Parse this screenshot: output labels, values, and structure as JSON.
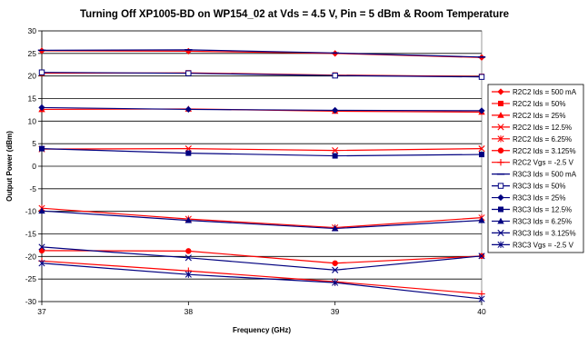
{
  "chart_data": {
    "type": "line",
    "title": "Turning Off XP1005-BD on WP154_02 at Vds = 4.5 V, Pin = 5 dBm & Room Temperature",
    "xlabel": "Frequency (GHz)",
    "ylabel": "Output Power (dBm)",
    "x": [
      37,
      38,
      39,
      40
    ],
    "xlim": [
      37,
      40
    ],
    "ylim": [
      -30,
      30
    ],
    "xticks": [
      "37",
      "38",
      "39",
      "40"
    ],
    "yticks": [
      "30",
      "25",
      "20",
      "15",
      "10",
      "5",
      "0",
      "-5",
      "-10",
      "-15",
      "-20",
      "-25",
      "-30"
    ],
    "grid": "horizontal",
    "legend_position": "right",
    "series": [
      {
        "name": "R2C2 Ids = 500 mA",
        "color": "#ff0000",
        "marker": "diamond-filled",
        "values": [
          25.6,
          25.5,
          25.0,
          24.1
        ]
      },
      {
        "name": "R2C2 Ids = 50%",
        "color": "#ff0000",
        "marker": "square-filled",
        "values": [
          20.6,
          20.7,
          20.2,
          19.9
        ]
      },
      {
        "name": "R2C2 Ids = 25%",
        "color": "#ff0000",
        "marker": "triangle-filled",
        "values": [
          12.6,
          12.7,
          12.2,
          12.0
        ]
      },
      {
        "name": "R2C2 Ids = 12.5%",
        "color": "#ff0000",
        "marker": "x",
        "values": [
          3.8,
          3.9,
          3.5,
          3.9
        ]
      },
      {
        "name": "R2C2 Ids = 6.25%",
        "color": "#ff0000",
        "marker": "star",
        "values": [
          -9.3,
          -11.7,
          -13.6,
          -11.4
        ]
      },
      {
        "name": "R2C2 Ids = 3.125%",
        "color": "#ff0000",
        "marker": "circle-filled",
        "values": [
          -18.7,
          -18.8,
          -21.5,
          -19.9
        ]
      },
      {
        "name": "R2C2 Vgs = -2.5 V",
        "color": "#ff0000",
        "marker": "plus",
        "values": [
          -21.0,
          -23.2,
          -25.6,
          -28.3
        ]
      },
      {
        "name": "R3C3 Ids = 500 mA",
        "color": "#000080",
        "marker": "dash",
        "values": [
          25.7,
          25.8,
          25.1,
          24.2
        ]
      },
      {
        "name": "R3C3 Ids = 50%",
        "color": "#000080",
        "marker": "square-open",
        "values": [
          20.8,
          20.6,
          20.1,
          19.8
        ]
      },
      {
        "name": "R3C3 Ids = 25%",
        "color": "#000080",
        "marker": "diamond-filled",
        "values": [
          13.0,
          12.6,
          12.4,
          12.3
        ]
      },
      {
        "name": "R3C3 Ids = 12.5%",
        "color": "#000080",
        "marker": "square-filled",
        "values": [
          3.9,
          2.9,
          2.3,
          2.6
        ]
      },
      {
        "name": "R3C3 Ids = 6.25%",
        "color": "#000080",
        "marker": "triangle-filled",
        "values": [
          -9.9,
          -12.0,
          -13.8,
          -12.0
        ]
      },
      {
        "name": "R3C3 Ids = 3.125%",
        "color": "#000080",
        "marker": "x",
        "values": [
          -17.9,
          -20.3,
          -23.0,
          -19.9
        ]
      },
      {
        "name": "R3C3 Vgs = -2.5 V",
        "color": "#000080",
        "marker": "star",
        "values": [
          -21.5,
          -24.0,
          -25.8,
          -29.4
        ]
      }
    ]
  }
}
